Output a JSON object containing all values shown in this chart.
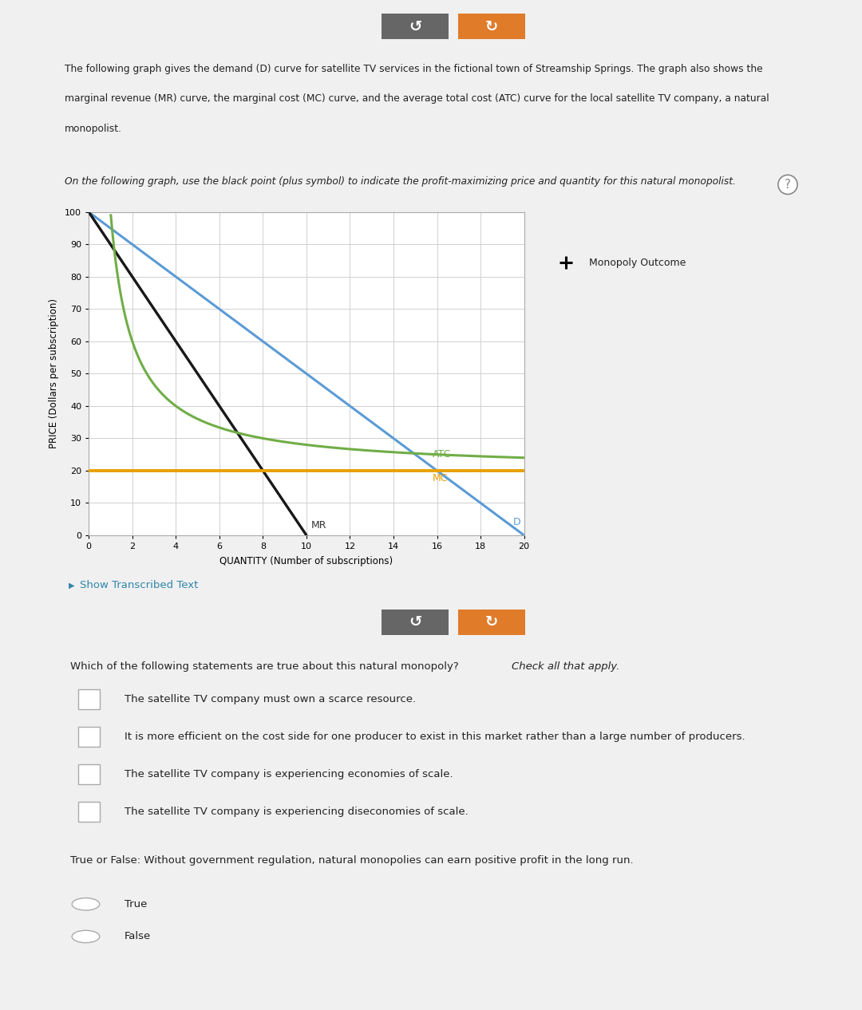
{
  "description_line1": "The following graph gives the demand (D) curve for satellite TV services in the fictional town of Streamship Springs. The graph also shows the",
  "description_line2": "marginal revenue (MR) curve, the marginal cost (MC) curve, and the average total cost (ATC) curve for the local satellite TV company, a natural",
  "description_line3": "monopolist.",
  "instruction_italic": "On the following graph, use the black point (plus symbol) to indicate the profit-maximizing price and quantity for this natural monopolist.",
  "xlabel": "QUANTITY (Number of subscriptions)",
  "ylabel": "PRICE (Dollars per subscription)",
  "xlim": [
    0,
    20
  ],
  "ylim": [
    0,
    100
  ],
  "xticks": [
    0,
    2,
    4,
    6,
    8,
    10,
    12,
    14,
    16,
    18,
    20
  ],
  "yticks": [
    0,
    10,
    20,
    30,
    40,
    50,
    60,
    70,
    80,
    90,
    100
  ],
  "D_color": "#5b9bd5",
  "MR_color": "#1a1a1a",
  "MC_color": "#e8a000",
  "ATC_color": "#70ad47",
  "monopoly_label": "Monopoly Outcome",
  "plot_bg_color": "#ffffff",
  "grid_color": "#d0d0d0",
  "question_text_normal": "Which of the following statements are true about this natural monopoly? ",
  "question_text_italic": "Check all that apply.",
  "checkboxes": [
    "The satellite TV company must own a scarce resource.",
    "It is more efficient on the cost side for one producer to exist in this market rather than a large number of producers.",
    "The satellite TV company is experiencing economies of scale.",
    "The satellite TV company is experiencing diseconomies of scale."
  ],
  "true_false_question": "True or False: Without government regulation, natural monopolies can earn positive profit in the long run.",
  "true_false_options": [
    "True",
    "False"
  ],
  "show_transcribed_text": "Show Transcribed Text",
  "outer_bg": "#f0f0f0",
  "panel_bg": "#ffffff",
  "panel_border": "#cccccc",
  "button1_color": "#666666",
  "button2_color": "#e07b2a",
  "button_icon1": "↺",
  "button_icon2": "↻",
  "link_color": "#2e86ab",
  "question_mark_color": "#888888"
}
